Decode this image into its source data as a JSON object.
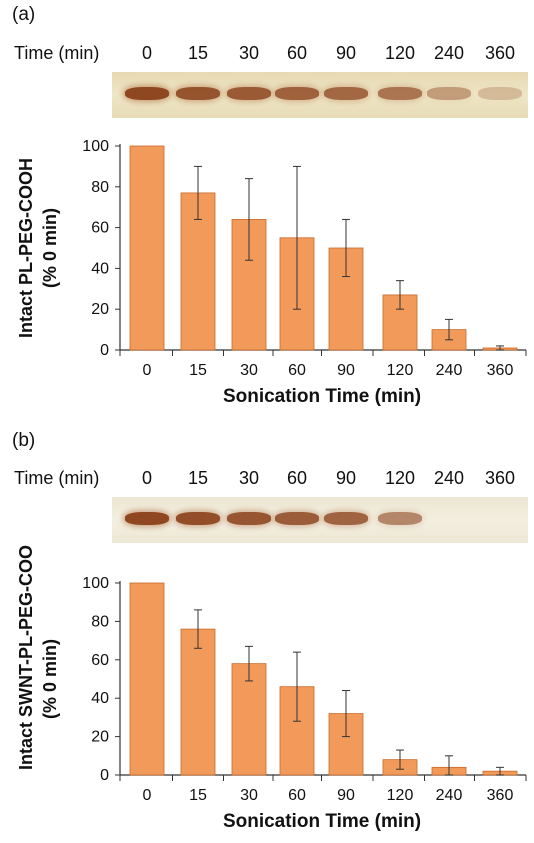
{
  "panels": [
    {
      "label": "(a)",
      "time_title": "Time (min)",
      "time_values": [
        "0",
        "15",
        "30",
        "60",
        "90",
        "120",
        "240",
        "360"
      ]
    },
    {
      "label": "(b)",
      "time_title": "Time (min)",
      "time_values": [
        "0",
        "15",
        "30",
        "60",
        "90",
        "120",
        "240",
        "360"
      ]
    }
  ],
  "colors": {
    "bar_fill": "#f29a5a",
    "bar_edge": "#c96a28",
    "band_dark": "#8a3f18",
    "axis": "#333333"
  },
  "chart_data": [
    {
      "type": "bar",
      "categories": [
        "0",
        "15",
        "30",
        "60",
        "90",
        "120",
        "240",
        "360"
      ],
      "values": [
        100,
        77,
        64,
        55,
        50,
        27,
        10,
        1
      ],
      "error": [
        0,
        13,
        20,
        35,
        14,
        7,
        5,
        1
      ],
      "title": "",
      "xlabel": "Sonication Time (min)",
      "ylabel": "Intact PL-PEG-COOH",
      "ylabel_sub": "(% 0 min)",
      "ylim": [
        0,
        100
      ],
      "yticks": [
        "0",
        "20",
        "40",
        "60",
        "80",
        "100"
      ],
      "gel_band_intensity": [
        1.0,
        0.9,
        0.85,
        0.8,
        0.75,
        0.65,
        0.35,
        0.12
      ]
    },
    {
      "type": "bar",
      "categories": [
        "0",
        "15",
        "30",
        "60",
        "90",
        "120",
        "240",
        "360"
      ],
      "values": [
        100,
        76,
        58,
        46,
        32,
        8,
        4,
        2
      ],
      "error": [
        0,
        10,
        9,
        18,
        12,
        5,
        6,
        2
      ],
      "title": "",
      "xlabel": "Sonication Time (min)",
      "ylabel": "Intact SWNT-PL-PEG-COOH",
      "ylabel_sub": "(% 0 min)",
      "ylim": [
        0,
        100
      ],
      "yticks": [
        "0",
        "20",
        "40",
        "60",
        "80",
        "100"
      ],
      "gel_band_intensity": [
        1.0,
        0.95,
        0.9,
        0.85,
        0.8,
        0.55,
        0.0,
        0.0
      ]
    }
  ]
}
